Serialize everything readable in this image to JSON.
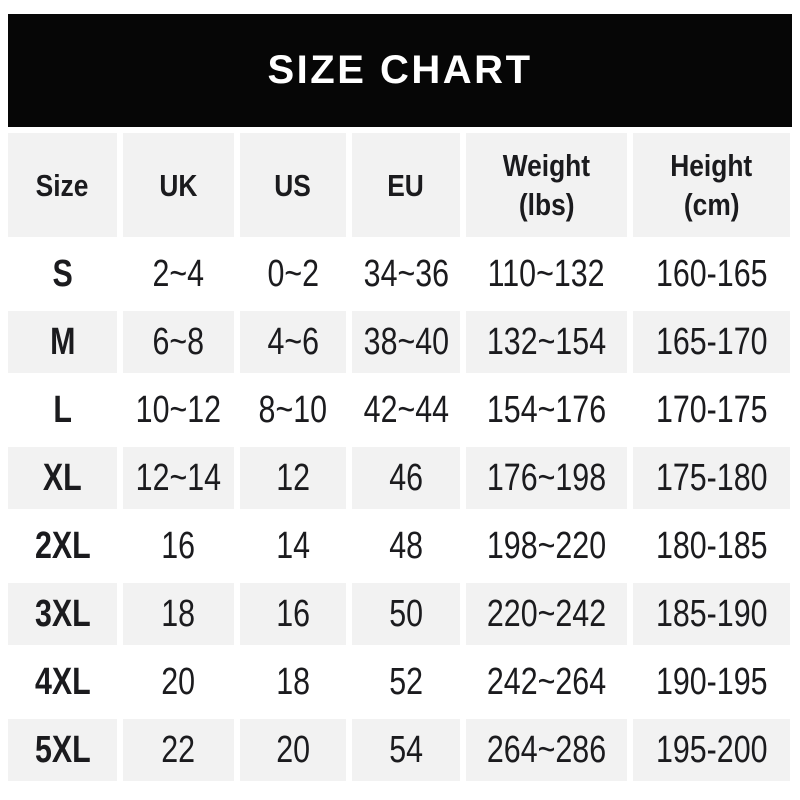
{
  "banner": {
    "title": "SIZE CHART",
    "bg_color": "#060606",
    "text_color": "#ffffff"
  },
  "colors": {
    "row_stripe": "#f2f2f2",
    "row_base": "#ffffff",
    "text": "#1b1b1e"
  },
  "chart_data": {
    "type": "table",
    "title": "SIZE CHART",
    "columns": [
      {
        "label": "Size"
      },
      {
        "label": "UK"
      },
      {
        "label": "US"
      },
      {
        "label": "EU"
      },
      {
        "label": "Weight",
        "label2": "(lbs)"
      },
      {
        "label": "Height",
        "label2": "(cm)"
      }
    ],
    "rows": [
      {
        "size": "S",
        "uk": "2~4",
        "us": "0~2",
        "eu": "34~36",
        "weight": "110~132",
        "height": "160-165"
      },
      {
        "size": "M",
        "uk": "6~8",
        "us": "4~6",
        "eu": "38~40",
        "weight": "132~154",
        "height": "165-170"
      },
      {
        "size": "L",
        "uk": "10~12",
        "us": "8~10",
        "eu": "42~44",
        "weight": "154~176",
        "height": "170-175"
      },
      {
        "size": "XL",
        "uk": "12~14",
        "us": "12",
        "eu": "46",
        "weight": "176~198",
        "height": "175-180"
      },
      {
        "size": "2XL",
        "uk": "16",
        "us": "14",
        "eu": "48",
        "weight": "198~220",
        "height": "180-185"
      },
      {
        "size": "3XL",
        "uk": "18",
        "us": "16",
        "eu": "50",
        "weight": "220~242",
        "height": "185-190"
      },
      {
        "size": "4XL",
        "uk": "20",
        "us": "18",
        "eu": "52",
        "weight": "242~264",
        "height": "190-195"
      },
      {
        "size": "5XL",
        "uk": "22",
        "us": "20",
        "eu": "54",
        "weight": "264~286",
        "height": "195-200"
      }
    ]
  }
}
